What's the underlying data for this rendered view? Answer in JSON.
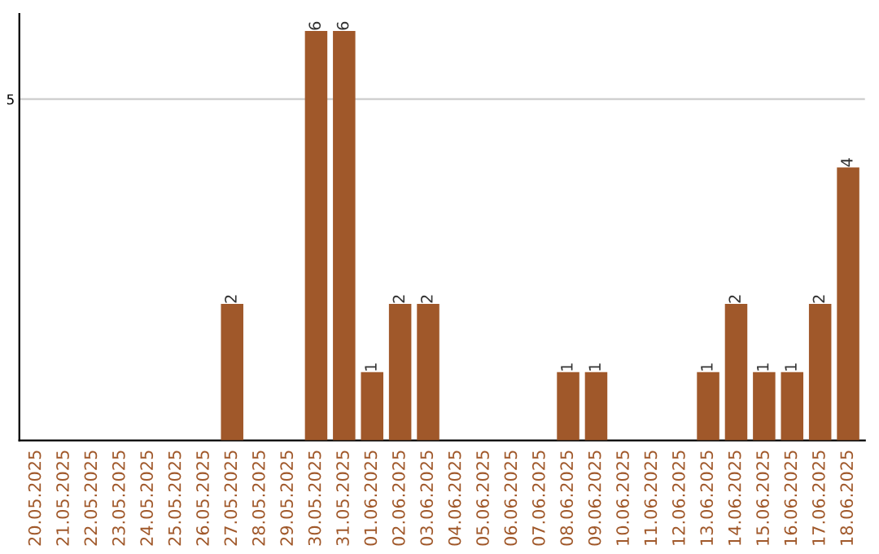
{
  "chart_data": {
    "type": "bar",
    "categories": [
      "20.05.2025",
      "21.05.2025",
      "22.05.2025",
      "23.05.2025",
      "24.05.2025",
      "25.05.2025",
      "26.05.2025",
      "27.05.2025",
      "28.05.2025",
      "29.05.2025",
      "30.05.2025",
      "31.05.2025",
      "01.06.2025",
      "02.06.2025",
      "03.06.2025",
      "04.06.2025",
      "05.06.2025",
      "06.06.2025",
      "07.06.2025",
      "08.06.2025",
      "09.06.2025",
      "10.06.2025",
      "11.06.2025",
      "12.06.2025",
      "13.06.2025",
      "14.06.2025",
      "15.06.2025",
      "16.06.2025",
      "17.06.2025",
      "18.06.2025"
    ],
    "values": [
      0,
      0,
      0,
      0,
      0,
      0,
      0,
      2,
      0,
      0,
      6,
      6,
      1,
      2,
      2,
      0,
      0,
      0,
      0,
      1,
      1,
      0,
      0,
      0,
      1,
      2,
      1,
      1,
      2,
      4
    ],
    "value_labels": [
      null,
      null,
      null,
      null,
      null,
      null,
      null,
      "2",
      null,
      null,
      "6",
      "6",
      "1",
      "2",
      "2",
      null,
      null,
      null,
      null,
      "1",
      "1",
      null,
      null,
      null,
      "1",
      "2",
      "1",
      "1",
      "2",
      "4"
    ],
    "color": "#a0582a",
    "ylim": [
      0,
      6.25
    ],
    "yticks": [
      5
    ],
    "grid": "y"
  }
}
